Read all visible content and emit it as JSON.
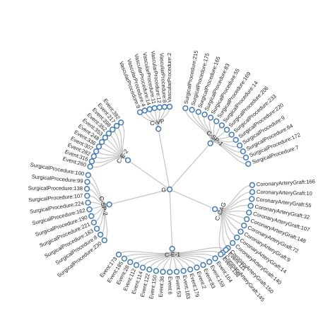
{
  "tree": {
    "root": "G",
    "clusters": [
      {
        "name": "C-VP",
        "leaves": [
          "VascularProcedure:9",
          "VascularProcedure:4",
          "VascularProcedure:14",
          "VascularProcedure:11",
          "VascularProcedure:12",
          "VascularProcedure:8",
          "VascularProcedure:2"
        ]
      },
      {
        "name": "C-SP-1",
        "leaves": [
          "SurgicalProcedure:215",
          "SurgicalProcedure:175",
          "SurgicalProcedure:165",
          "SurgicalProcedure:83",
          "SurgicalProcedure:55",
          "SurgicalProcedure:169",
          "SurgicalProcedure:14",
          "SurgicalProcedure:206",
          "SurgicalProcedure:233",
          "SurgicalProcedure:220",
          "SurgicalProcedure:9",
          "SurgicalProcedure:64",
          "SurgicalProcedure:172",
          "SurgicalProcedure:7"
        ]
      },
      {
        "name": "C-CAG",
        "leaves": [
          "CoronaryArteryGraft:166",
          "CoronaryArteryGraft:10",
          "CoronaryArteryGraft:55",
          "CoronaryArteryGraft:32",
          "CoronaryArteryGraft:107",
          "CoronaryArteryGraft:148",
          "CoronaryArteryGraft:72",
          "CoronaryArteryGraft:9",
          "CoronaryArteryGraft:14",
          "CoronaryArteryGraft:140",
          "CoronaryArteryGraft:150",
          "CoronaryArteryGraft:145"
        ]
      },
      {
        "name": "C-E-1",
        "leaves": [
          "Event:111",
          "Event:158",
          "Event:164",
          "Event:159",
          "Event:83",
          "Event:2",
          "Event:179",
          "Event:183",
          "Event:53",
          "Event:6",
          "Event:36",
          "Event:150",
          "Event:122",
          "Event:114",
          "Event:112",
          "Event:28",
          "Event:185",
          "Event:173"
        ]
      },
      {
        "name": "C-SP-2",
        "leaves": [
          "SurgicalProcedure:230",
          "SurgicalProcedure:8",
          "SurgicalProcedure:163",
          "SurgicalProcedure:221",
          "SurgicalProcedure:190",
          "SurgicalProcedure:162",
          "SurgicalProcedure:224",
          "SurgicalProcedure:107",
          "SurgicalProcedure:138",
          "SurgicalProcedure:99",
          "SurgicalProcedure:100"
        ]
      },
      {
        "name": "C-E-2",
        "leaves": [
          "Event:260",
          "Event:316",
          "Event:282",
          "Event:307",
          "Event:336",
          "Event:248",
          "Event:353",
          "Event:352",
          "Event:398",
          "Event:217",
          "Event:392"
        ]
      }
    ]
  },
  "colors": {
    "link": "#c4c4c4",
    "node_stroke": "#4a7fb5",
    "node_fill": "#ffffff",
    "text": "#222222"
  }
}
